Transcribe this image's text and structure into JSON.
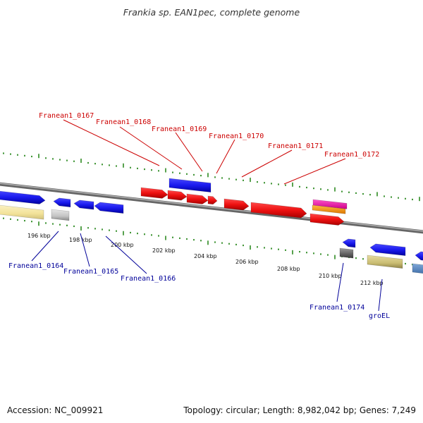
{
  "title": "Frankia sp. EAN1pec, complete genome",
  "footer": {
    "accession": "Accession: NC_009921",
    "topology": "Topology: circular; Length: 8,982,042 bp; Genes: 7,249"
  },
  "colors": {
    "backbone": "#8a8a8a",
    "ticks": "#2e8b22",
    "red_gene": "#ee1111",
    "blue_gene": "#1a1aee",
    "label_red": "#cc0000",
    "label_blue": "#000099"
  },
  "kbp_labels": [
    "196 kbp",
    "198 kbp",
    "200 kbp",
    "202 kbp",
    "204 kbp",
    "206 kbp",
    "208 kbp",
    "210 kbp",
    "212 kbp"
  ],
  "top_labels": [
    "Franean1_0167",
    "Franean1_0168",
    "Franean1_0169",
    "Franean1_0170",
    "Franean1_0171",
    "Franean1_0172"
  ],
  "bottom_labels": [
    "Franean1_0164",
    "Franean1_0165",
    "Franean1_0166",
    "Franean1_0174",
    "groEL"
  ]
}
